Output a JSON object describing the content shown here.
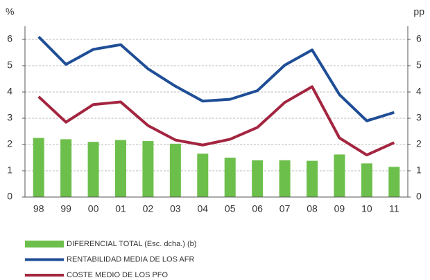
{
  "chart_data": {
    "type": "bar-line",
    "y_label": "%",
    "y2_label": "pp",
    "categories": [
      "98",
      "99",
      "00",
      "01",
      "02",
      "03",
      "04",
      "05",
      "06",
      "07",
      "08",
      "09",
      "10",
      "11"
    ],
    "series": [
      {
        "name": "DIFERENCIAL TOTAL (Esc. dcha.) (b)",
        "type": "bar",
        "axis": "y2",
        "color": "#6dbf4b",
        "values": [
          2.25,
          2.2,
          2.1,
          2.17,
          2.13,
          2.03,
          1.65,
          1.5,
          1.4,
          1.4,
          1.38,
          1.62,
          1.28,
          1.15
        ]
      },
      {
        "name": "RENTABILIDAD MEDIA DE LOS AFR",
        "type": "line",
        "color": "#1f4e96",
        "values": [
          6.1,
          5.05,
          5.62,
          5.8,
          4.88,
          4.22,
          3.65,
          3.72,
          4.05,
          5.02,
          5.6,
          3.9,
          2.9,
          3.22
        ]
      },
      {
        "name": "COSTE MEDIO DE LOS PFO",
        "type": "line",
        "color": "#a3253f",
        "values": [
          3.82,
          2.85,
          3.52,
          3.62,
          2.72,
          2.17,
          1.98,
          2.2,
          2.65,
          3.6,
          4.2,
          2.25,
          1.6,
          2.07
        ]
      }
    ],
    "ylim": [
      0,
      6.5
    ],
    "yticks": [
      0,
      1,
      2,
      3,
      4,
      5,
      6
    ],
    "y2lim": [
      0,
      6.5
    ],
    "y2ticks": [
      0,
      1,
      2,
      3,
      4,
      5,
      6
    ],
    "grid": true
  }
}
